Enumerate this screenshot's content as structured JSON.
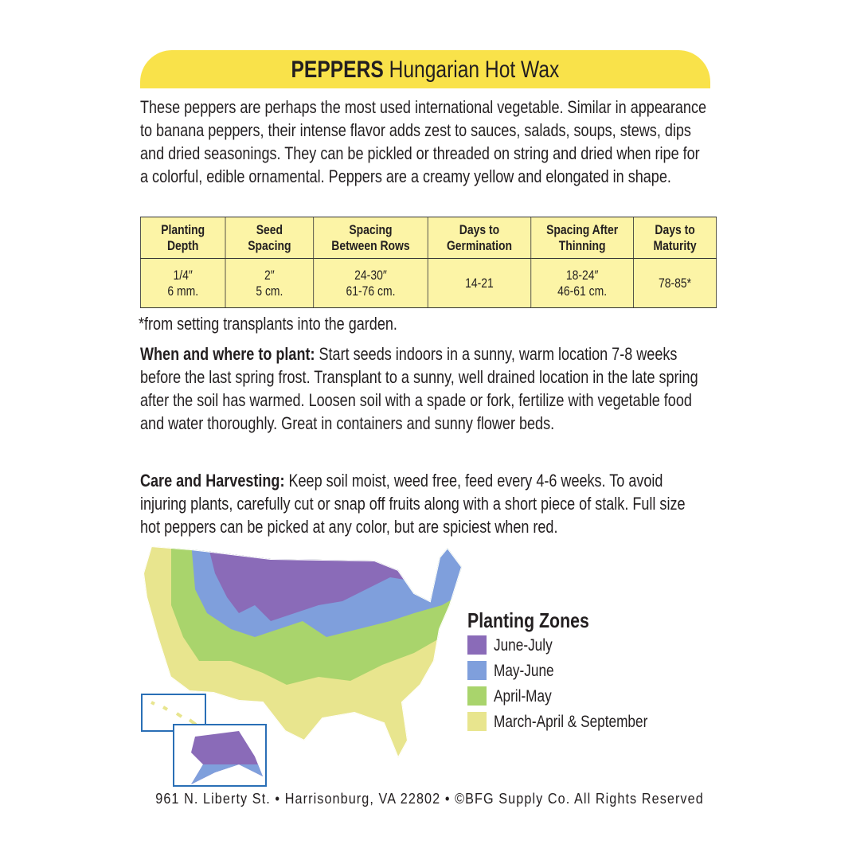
{
  "header": {
    "title_bold": "PEPPERS",
    "title_rest": "Hungarian Hot Wax"
  },
  "description": "These peppers are perhaps the most used international vegetable. Similar in appearance to banana peppers, their intense flavor adds zest to sauces, salads, soups, stews, dips and dried seasonings. They can be pickled or threaded on string and dried when ripe for a colorful, edible ornamental. Peppers are a creamy yellow and elongated in shape.",
  "table": {
    "headers": [
      [
        "Planting",
        "Depth"
      ],
      [
        "Seed",
        "Spacing"
      ],
      [
        "Spacing",
        "Between Rows"
      ],
      [
        "Days to",
        "Germination"
      ],
      [
        "Spacing After",
        "Thinning"
      ],
      [
        "Days to",
        "Maturity"
      ]
    ],
    "rows": [
      [
        [
          "1/4″",
          "6 mm."
        ],
        [
          "2″",
          "5 cm."
        ],
        [
          "24-30″",
          "61-76 cm."
        ],
        [
          "14-21"
        ],
        [
          "18-24″",
          "46-61 cm."
        ],
        [
          "78-85*"
        ]
      ]
    ]
  },
  "footnote": "*from setting transplants into the garden.",
  "sections": [
    {
      "label": "When and where to plant:",
      "text": "Start seeds indoors in a sunny, warm location 7-8 weeks before the last spring frost. Transplant to a sunny, well drained location in the late spring after the soil has warmed. Loosen soil with a spade or fork, fertilize with vegetable food and water thoroughly. Great in containers and sunny flower beds."
    },
    {
      "label": "Care and Harvesting:",
      "text": "Keep soil moist, weed free, feed every 4-6 weeks. To avoid injuring plants, carefully cut or snap off fruits along with a short piece of stalk. Full size hot peppers can be picked at any color, but are spiciest when red."
    }
  ],
  "legend": {
    "title": "Planting Zones",
    "items": [
      {
        "label": "June-July",
        "color": "#8a6bb8"
      },
      {
        "label": "May-June",
        "color": "#7f9fdc"
      },
      {
        "label": "April-May",
        "color": "#a9d46c"
      },
      {
        "label": "March-April & September",
        "color": "#e8e58e"
      }
    ]
  },
  "footer": "961 N. Liberty St. • Harrisonburg, VA 22802 • ©BFG Supply Co. All Rights Reserved"
}
